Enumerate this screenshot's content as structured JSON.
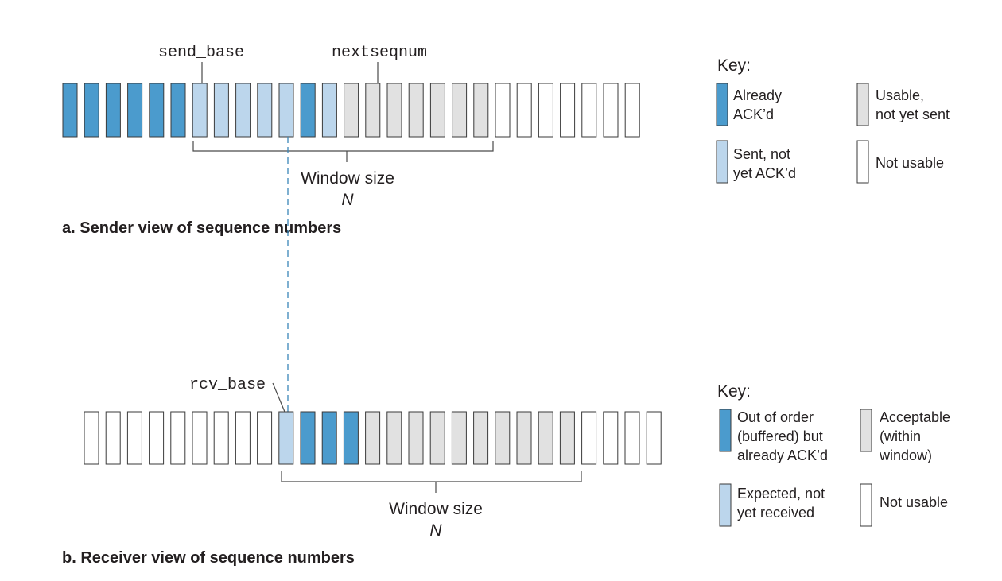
{
  "colors": {
    "acked": "#4b9bcd",
    "sent_not_acked": "#bcd6ec",
    "usable": "#e1e1e1",
    "not_usable": "#ffffff",
    "outline": "#3a3a3a",
    "dashed_line": "#3a86b8"
  },
  "sender": {
    "caption": "a. Sender view of sequence numbers",
    "send_base_label": "send_base",
    "nextseqnum_label": "nextseqnum",
    "window_label": "Window size",
    "window_symbol": "N",
    "cells": [
      "acked",
      "acked",
      "acked",
      "acked",
      "acked",
      "acked",
      "sent",
      "sent",
      "sent",
      "sent",
      "sent",
      "acked",
      "sent",
      "usable",
      "usable",
      "usable",
      "usable",
      "usable",
      "usable",
      "usable",
      "not",
      "not",
      "not",
      "not",
      "not",
      "not",
      "not"
    ],
    "key": {
      "title": "Key:",
      "items": [
        {
          "state": "acked",
          "lines": [
            "Already",
            "ACK’d"
          ]
        },
        {
          "state": "usable",
          "lines": [
            "Usable,",
            "not yet sent"
          ]
        },
        {
          "state": "sent",
          "lines": [
            "Sent, not",
            "yet ACK’d"
          ]
        },
        {
          "state": "not",
          "lines": [
            "Not usable"
          ]
        }
      ]
    }
  },
  "receiver": {
    "caption": "b. Receiver view of sequence numbers",
    "rcv_base_label": "rcv_base",
    "window_label": "Window size",
    "window_symbol": "N",
    "cells": [
      "not",
      "not",
      "not",
      "not",
      "not",
      "not",
      "not",
      "not",
      "not",
      "expected",
      "outoforder",
      "outoforder",
      "outoforder",
      "usable",
      "usable",
      "usable",
      "usable",
      "usable",
      "usable",
      "usable",
      "usable",
      "usable",
      "usable",
      "not",
      "not",
      "not",
      "not"
    ],
    "key": {
      "title": "Key:",
      "items": [
        {
          "state": "outoforder",
          "lines": [
            "Out of order",
            "(buffered) but",
            "already ACK’d"
          ]
        },
        {
          "state": "usable",
          "lines": [
            "Acceptable",
            "(within",
            "window)"
          ]
        },
        {
          "state": "expected",
          "lines": [
            "Expected, not",
            "yet received"
          ]
        },
        {
          "state": "not",
          "lines": [
            "Not usable"
          ]
        }
      ]
    }
  }
}
